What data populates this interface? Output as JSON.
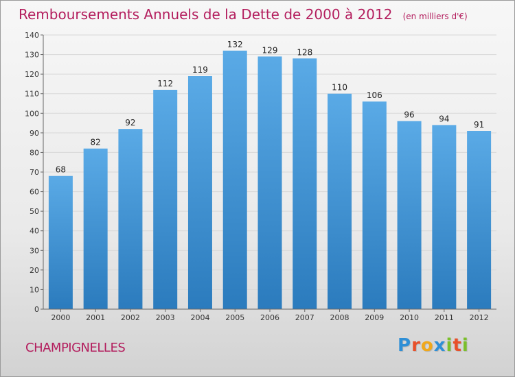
{
  "header": {
    "title": "Remboursements Annuels de la Dette de 2000 à 2012",
    "unit": "(en milliers d'€)"
  },
  "footer": {
    "commune": "CHAMPIGNELLES",
    "logo_text": "Proxiti",
    "logo_letters": [
      {
        "ch": "P",
        "color": "#2f8fd6"
      },
      {
        "ch": "r",
        "color": "#e8502a"
      },
      {
        "ch": "o",
        "color": "#f0a81c"
      },
      {
        "ch": "x",
        "color": "#2f8fd6"
      },
      {
        "ch": "i",
        "color": "#7bbf2a"
      },
      {
        "ch": "t",
        "color": "#e8502a"
      },
      {
        "ch": "i",
        "color": "#7bbf2a"
      }
    ]
  },
  "colors": {
    "bar_top": "#5aaae6",
    "bar_bottom": "#2b7bbd",
    "title": "#b31d5d",
    "grid": "#d8d8d8"
  },
  "chart_data": {
    "type": "bar",
    "categories": [
      "2000",
      "2001",
      "2002",
      "2003",
      "2004",
      "2005",
      "2006",
      "2007",
      "2008",
      "2009",
      "2010",
      "2011",
      "2012"
    ],
    "values": [
      68,
      82,
      92,
      112,
      119,
      132,
      129,
      128,
      110,
      106,
      96,
      94,
      91
    ],
    "ylim": [
      0,
      140
    ],
    "y_ticks": [
      0,
      10,
      20,
      30,
      40,
      50,
      60,
      70,
      80,
      90,
      100,
      110,
      120,
      130,
      140
    ],
    "grid": true
  }
}
